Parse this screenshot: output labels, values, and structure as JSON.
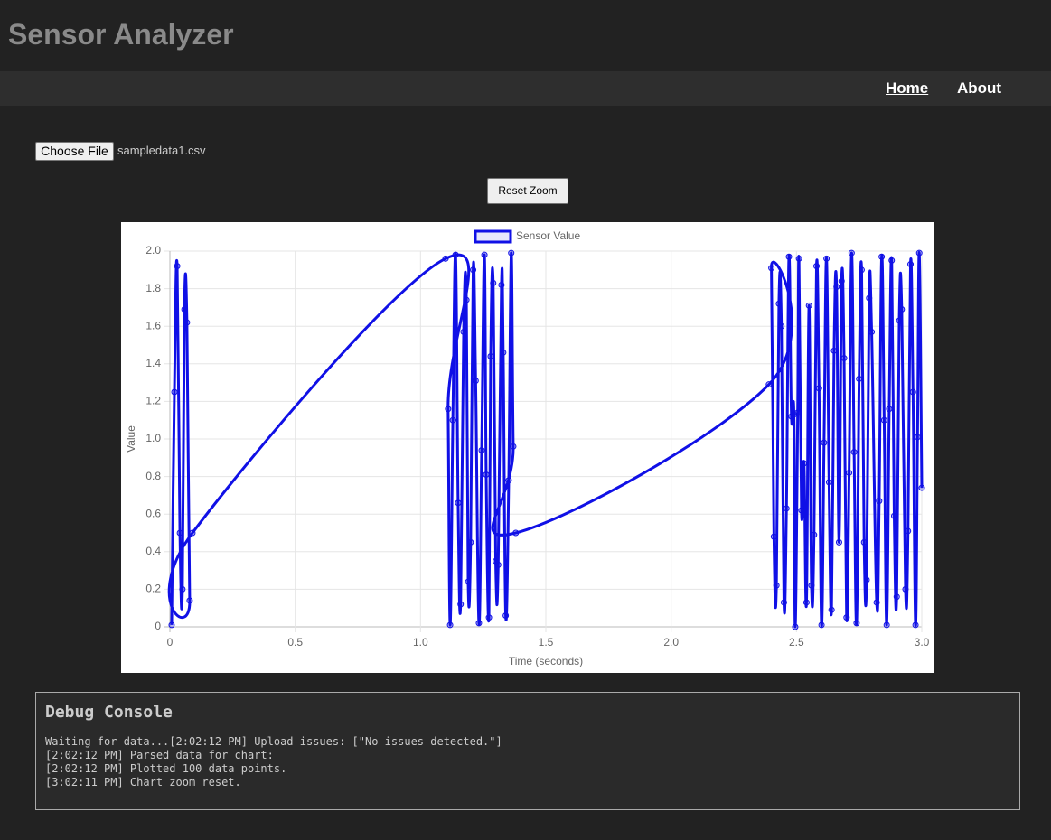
{
  "header": {
    "title": "Sensor Analyzer"
  },
  "nav": {
    "links": [
      "Home",
      "About"
    ]
  },
  "file_input": {
    "button": "Choose File",
    "filename": "sampledata1.csv"
  },
  "reset_button": "Reset Zoom",
  "chart_data": {
    "type": "line",
    "xlabel": "Time (seconds)",
    "ylabel": "Value",
    "x": [
      0.007,
      0.018,
      0.029,
      0.04,
      0.05,
      0.058,
      0.068,
      0.079,
      0.09,
      1.1,
      1.11,
      1.118,
      1.129,
      1.14,
      1.15,
      1.16,
      1.172,
      1.183,
      1.19,
      1.2,
      1.21,
      1.22,
      1.233,
      1.244,
      1.255,
      1.262,
      1.273,
      1.28,
      1.29,
      1.3,
      1.31,
      1.323,
      1.33,
      1.34,
      1.352,
      1.362,
      1.37,
      1.38,
      2.39,
      2.4,
      2.41,
      2.42,
      2.43,
      2.44,
      2.45,
      2.46,
      2.47,
      2.48,
      2.49,
      2.495,
      2.505,
      2.51,
      2.52,
      2.53,
      2.54,
      2.55,
      2.56,
      2.57,
      2.58,
      2.59,
      2.6,
      2.61,
      2.62,
      2.63,
      2.64,
      2.65,
      2.66,
      2.67,
      2.68,
      2.69,
      2.7,
      2.71,
      2.72,
      2.73,
      2.74,
      2.75,
      2.76,
      2.77,
      2.78,
      2.79,
      2.8,
      2.82,
      2.83,
      2.84,
      2.85,
      2.86,
      2.87,
      2.88,
      2.89,
      2.9,
      2.91,
      2.92,
      2.935,
      2.945,
      2.955,
      2.965,
      2.975,
      2.983,
      2.99,
      3.0
    ],
    "series": [
      {
        "name": "Sensor Value",
        "color": "#1010e6",
        "values": [
          0.01,
          1.25,
          1.92,
          0.5,
          0.2,
          1.69,
          1.62,
          0.14,
          0.5,
          1.96,
          1.16,
          0.01,
          1.1,
          1.98,
          0.66,
          0.12,
          1.57,
          1.74,
          0.24,
          0.45,
          1.9,
          1.31,
          0.02,
          0.94,
          1.98,
          0.81,
          0.05,
          1.44,
          1.83,
          0.35,
          0.33,
          1.82,
          1.46,
          0.06,
          0.78,
          1.99,
          0.96,
          0.5,
          1.29,
          1.91,
          0.48,
          0.22,
          1.72,
          1.6,
          0.13,
          0.63,
          1.97,
          1.12,
          1.13,
          0.0,
          1.14,
          1.96,
          0.62,
          0.87,
          0.13,
          1.71,
          0.22,
          0.49,
          1.92,
          1.27,
          0.01,
          0.98,
          1.96,
          0.77,
          0.09,
          1.47,
          1.81,
          0.45,
          1.84,
          1.43,
          0.05,
          0.82,
          1.99,
          0.93,
          0.02,
          1.32,
          1.9,
          0.45,
          0.25,
          1.75,
          1.57,
          0.13,
          0.67,
          1.97,
          1.1,
          0.01,
          1.16,
          1.95,
          0.59,
          0.16,
          1.63,
          1.69,
          0.2,
          0.51,
          1.93,
          1.25,
          0.01,
          1.01,
          1.99,
          0.74
        ]
      }
    ],
    "xlim": [
      0,
      3
    ],
    "xticks": [
      0,
      0.5,
      {
        "value": 1,
        "label": "1.0"
      },
      1.5,
      {
        "value": 2,
        "label": "2.0"
      },
      2.5,
      {
        "value": 3,
        "label": "3.0"
      }
    ],
    "ylim": [
      0,
      2
    ],
    "yticks": [
      0,
      0.2,
      0.4,
      0.6,
      0.8,
      {
        "value": 1,
        "label": "1.0"
      },
      1.2,
      1.4,
      1.6,
      1.8,
      {
        "value": 2,
        "label": "2.0"
      }
    ],
    "grid": true,
    "legend": "top"
  },
  "debug_console": {
    "title": "Debug Console",
    "lines": [
      "Waiting for data...[2:02:12 PM] Upload issues: [\"No issues detected.\"]",
      "[2:02:12 PM] Parsed data for chart:",
      "[2:02:12 PM] Plotted 100 data points.",
      "[3:02:11 PM] Chart zoom reset."
    ]
  }
}
